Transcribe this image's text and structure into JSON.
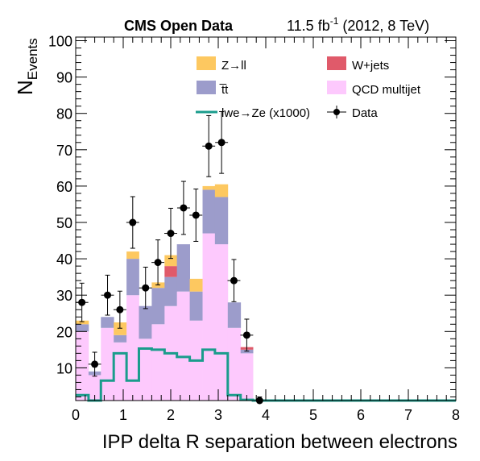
{
  "header": {
    "left": "CMS Open Data",
    "lumi_value": "11.5 fb",
    "lumi_exp": "-1",
    "lumi_rest": " (2012, 8 TeV)"
  },
  "axes": {
    "ylabel_main": "N",
    "ylabel_sub": "Events",
    "xlabel": "IPP delta R separation between electrons"
  },
  "legend": {
    "zll": "Z→ll",
    "wjets": "W+jets",
    "ttbar": "t̅t",
    "qcd": "QCD multijet",
    "signal": "lwe→Ze (x1000)",
    "data": "Data"
  },
  "colors": {
    "zll": "#fdc860",
    "wjets": "#e05a6a",
    "ttbar": "#9c9ccb",
    "qcd": "#fdc9fd",
    "signal": "#1a9c8c",
    "data": "#000000"
  },
  "chart_data": {
    "type": "bar",
    "stacked": true,
    "bin_edges": [
      0.0,
      0.27,
      0.53,
      0.8,
      1.07,
      1.33,
      1.6,
      1.87,
      2.13,
      2.4,
      2.67,
      2.93,
      3.2,
      3.47,
      3.73,
      4.0,
      4.27,
      4.53,
      4.8,
      5.07,
      5.33,
      5.6,
      5.87,
      6.13,
      6.4,
      6.67,
      6.93,
      7.2,
      7.47,
      7.73,
      8.0
    ],
    "xlim": [
      0,
      8
    ],
    "ylim": [
      1,
      101
    ],
    "xticks": [
      0,
      1,
      2,
      3,
      4,
      5,
      6,
      7,
      8
    ],
    "yticks": [
      10,
      20,
      30,
      40,
      50,
      60,
      70,
      80,
      90,
      100
    ],
    "series": [
      {
        "name": "QCD multijet",
        "values": [
          20,
          8,
          21,
          17,
          30,
          18,
          22,
          27,
          31,
          23,
          47,
          44,
          21,
          14,
          0,
          0,
          0,
          0,
          0,
          0,
          0,
          0,
          0,
          0,
          0,
          0,
          0,
          0,
          0,
          0
        ]
      },
      {
        "name": "t̅t",
        "values": [
          2,
          1,
          3,
          2,
          10,
          9,
          10,
          8,
          13,
          8,
          12,
          13,
          7,
          1,
          0,
          0,
          0,
          0,
          0,
          0,
          0,
          0,
          0,
          0,
          0,
          0,
          0,
          0,
          0,
          0
        ]
      },
      {
        "name": "W+jets",
        "values": [
          0,
          0,
          0,
          0,
          0,
          0,
          0,
          3,
          0,
          0,
          0,
          0,
          0,
          0.7,
          0,
          0,
          0,
          0,
          0,
          0,
          0,
          0,
          0,
          0,
          0,
          0,
          0,
          0,
          0,
          0
        ]
      },
      {
        "name": "Z→ll",
        "values": [
          1,
          0,
          0,
          3.5,
          2,
          0,
          1.5,
          3,
          0,
          3.5,
          1,
          3.5,
          0,
          0,
          0,
          0,
          0,
          0,
          0,
          0,
          0,
          0,
          0,
          0,
          0,
          0,
          0,
          0,
          0,
          0
        ]
      }
    ],
    "signal": {
      "name": "lwe→Ze (x1000)",
      "values": [
        2.5,
        0.8,
        6.5,
        14,
        6.5,
        15.3,
        15,
        14,
        13,
        12,
        15,
        14,
        2.5,
        1.2,
        0.9,
        0.9,
        0.9,
        0.9,
        0.9,
        0.9,
        0.9,
        0.9,
        0.9,
        0.9,
        0.9,
        0.9,
        0.9,
        0.9,
        0.9,
        0.9
      ]
    },
    "data": {
      "name": "Data",
      "x": [
        0.13,
        0.4,
        0.67,
        0.93,
        1.2,
        1.47,
        1.73,
        2.0,
        2.27,
        2.53,
        2.8,
        3.07,
        3.33,
        3.6,
        3.87
      ],
      "y": [
        28,
        11,
        30,
        26,
        50,
        32,
        39,
        47,
        54,
        52,
        71,
        72,
        34,
        19,
        1
      ],
      "err": [
        5.3,
        3.3,
        5.5,
        5.1,
        7.1,
        5.7,
        6.2,
        6.9,
        7.3,
        7.2,
        8.4,
        8.5,
        5.8,
        4.4,
        1
      ]
    }
  }
}
